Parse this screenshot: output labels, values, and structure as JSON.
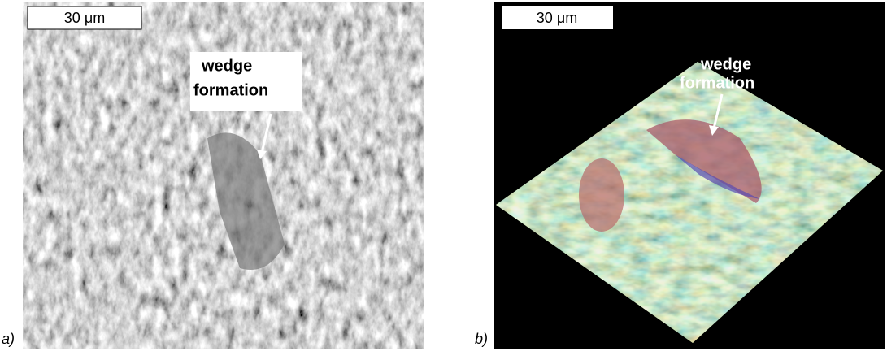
{
  "panels": [
    {
      "label": "a)",
      "scale_bar": "30 μm",
      "annotation": [
        "wedge",
        "formation"
      ]
    },
    {
      "label": "b)",
      "scale_bar": "30 μm",
      "annotation": [
        "wedge",
        "formation"
      ]
    }
  ]
}
